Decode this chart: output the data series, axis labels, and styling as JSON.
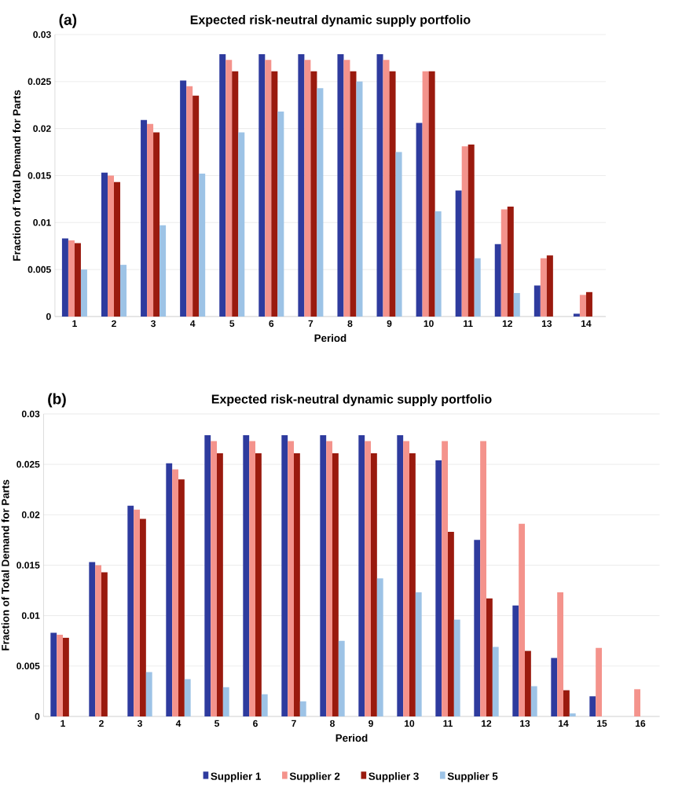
{
  "chart_data": [
    {
      "type": "bar",
      "title": "Expected risk-neutral dynamic supply portfolio",
      "xlabel": "Period",
      "ylabel": "Fraction of Total Demand for Parts",
      "annotations": [
        "(a)"
      ],
      "categories": [
        "1",
        "2",
        "3",
        "4",
        "5",
        "6",
        "7",
        "8",
        "9",
        "10",
        "11",
        "12",
        "13",
        "14"
      ],
      "series": [
        {
          "color": "#2e3b9e",
          "values": [
            0.0083,
            0.0153,
            0.0209,
            0.0251,
            0.0279,
            0.0279,
            0.0279,
            0.0279,
            0.0279,
            0.0206,
            0.0134,
            0.0077,
            0.0033,
            0.0003
          ]
        },
        {
          "color": "#f4938c",
          "values": [
            0.0081,
            0.015,
            0.0205,
            0.0245,
            0.0273,
            0.0273,
            0.0273,
            0.0273,
            0.0273,
            0.0261,
            0.0181,
            0.0114,
            0.0062,
            0.0023
          ]
        },
        {
          "color": "#9a1a0e",
          "values": [
            0.0078,
            0.0143,
            0.0196,
            0.0235,
            0.0261,
            0.0261,
            0.0261,
            0.0261,
            0.0261,
            0.0261,
            0.0183,
            0.0117,
            0.0065,
            0.0026
          ]
        },
        {
          "color": "#9dc3e6",
          "values": [
            0.005,
            0.0055,
            0.0097,
            0.0152,
            0.0196,
            0.0218,
            0.0243,
            0.025,
            0.0175,
            0.0112,
            0.0062,
            0.0025,
            0,
            0
          ]
        }
      ],
      "ylim": [
        0,
        0.03
      ],
      "yticks": [
        0,
        0.005,
        0.01,
        0.015,
        0.02,
        0.025,
        0.03
      ],
      "grid": "y",
      "legend": false
    },
    {
      "type": "bar",
      "title": "Expected risk-neutral dynamic supply portfolio",
      "xlabel": "Period",
      "ylabel": "Fraction of Total Demand for Parts",
      "annotations": [
        "(b)"
      ],
      "categories": [
        "1",
        "2",
        "3",
        "4",
        "5",
        "6",
        "7",
        "8",
        "9",
        "10",
        "11",
        "12",
        "13",
        "14",
        "15",
        "16"
      ],
      "series": [
        {
          "name": "Supplier 1",
          "color": "#2e3b9e",
          "values": [
            0.0083,
            0.0153,
            0.0209,
            0.0251,
            0.0279,
            0.0279,
            0.0279,
            0.0279,
            0.0279,
            0.0279,
            0.0254,
            0.0175,
            0.011,
            0.0058,
            0.002,
            0
          ]
        },
        {
          "name": "Supplier 2",
          "color": "#f4938c",
          "values": [
            0.0081,
            0.015,
            0.0205,
            0.0245,
            0.0273,
            0.0273,
            0.0273,
            0.0273,
            0.0273,
            0.0273,
            0.0273,
            0.0273,
            0.0191,
            0.0123,
            0.0068,
            0.0027
          ]
        },
        {
          "name": "Supplier 3",
          "color": "#9a1a0e",
          "values": [
            0.0078,
            0.0143,
            0.0196,
            0.0235,
            0.0261,
            0.0261,
            0.0261,
            0.0261,
            0.0261,
            0.0261,
            0.0183,
            0.0117,
            0.0065,
            0.0026,
            0,
            0
          ]
        },
        {
          "name": "Supplier 5",
          "color": "#9dc3e6",
          "values": [
            0,
            0,
            0.0044,
            0.0037,
            0.0029,
            0.0022,
            0.0015,
            0.0075,
            0.0137,
            0.0123,
            0.0096,
            0.0069,
            0.003,
            0.0003,
            0,
            0
          ]
        }
      ],
      "ylim": [
        0,
        0.03
      ],
      "yticks": [
        0,
        0.005,
        0.01,
        0.015,
        0.02,
        0.025,
        0.03
      ],
      "grid": "y",
      "legend": "bottom"
    }
  ]
}
